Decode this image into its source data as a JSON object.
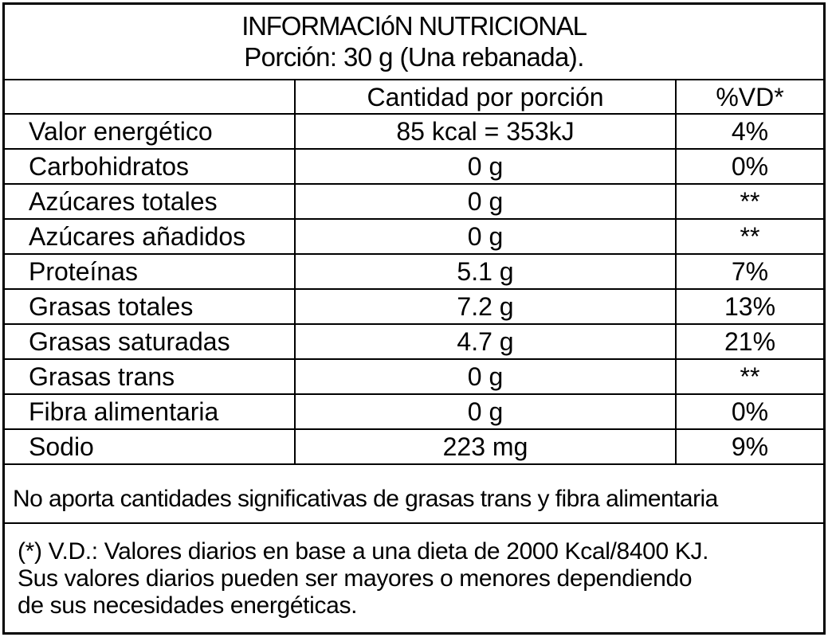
{
  "header": {
    "title": "INFORMACIóN NUTRICIONAL",
    "serving": "Porción: 30 g (Una rebanada)."
  },
  "columns": {
    "nutrient": "",
    "amount": "Cantidad por porción",
    "dv": "%VD*"
  },
  "rows": [
    {
      "nutrient": "Valor energético",
      "amount": "85 kcal = 353kJ",
      "dv": "4%"
    },
    {
      "nutrient": "Carbohidratos",
      "amount": "0 g",
      "dv": "0%"
    },
    {
      "nutrient": "Azúcares totales",
      "amount": "0 g",
      "dv": "**"
    },
    {
      "nutrient": "Azúcares añadidos",
      "amount": "0 g",
      "dv": "**"
    },
    {
      "nutrient": "Proteínas",
      "amount": "5.1 g",
      "dv": "7%"
    },
    {
      "nutrient": "Grasas totales",
      "amount": "7.2 g",
      "dv": "13%"
    },
    {
      "nutrient": "Grasas saturadas",
      "amount": "4.7 g",
      "dv": "21%"
    },
    {
      "nutrient": "Grasas trans",
      "amount": "0 g",
      "dv": "**"
    },
    {
      "nutrient": "Fibra alimentaria",
      "amount": "0 g",
      "dv": "0%"
    },
    {
      "nutrient": "Sodio",
      "amount": "223 mg",
      "dv": "9%"
    }
  ],
  "note": "No aporta cantidades significativas de grasas trans y fibra alimentaria",
  "footnote": {
    "line1": "(*) V.D.: Valores diarios en base a una dieta de 2000 Kcal/8400 KJ.",
    "line2": "Sus valores diarios pueden ser mayores o menores dependiendo",
    "line3": "de sus necesidades energéticas."
  }
}
